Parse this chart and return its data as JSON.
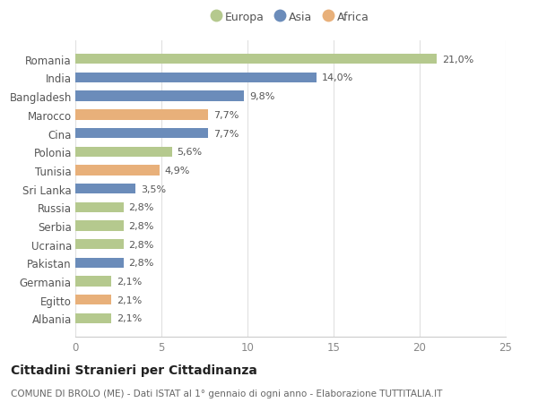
{
  "categories": [
    "Romania",
    "India",
    "Bangladesh",
    "Marocco",
    "Cina",
    "Polonia",
    "Tunisia",
    "Sri Lanka",
    "Russia",
    "Serbia",
    "Ucraina",
    "Pakistan",
    "Germania",
    "Egitto",
    "Albania"
  ],
  "values": [
    21.0,
    14.0,
    9.8,
    7.7,
    7.7,
    5.6,
    4.9,
    3.5,
    2.8,
    2.8,
    2.8,
    2.8,
    2.1,
    2.1,
    2.1
  ],
  "labels": [
    "21,0%",
    "14,0%",
    "9,8%",
    "7,7%",
    "7,7%",
    "5,6%",
    "4,9%",
    "3,5%",
    "2,8%",
    "2,8%",
    "2,8%",
    "2,8%",
    "2,1%",
    "2,1%",
    "2,1%"
  ],
  "continents": [
    "Europa",
    "Asia",
    "Asia",
    "Africa",
    "Asia",
    "Europa",
    "Africa",
    "Asia",
    "Europa",
    "Europa",
    "Europa",
    "Asia",
    "Europa",
    "Africa",
    "Europa"
  ],
  "colors": {
    "Europa": "#b5c98e",
    "Asia": "#6b8cba",
    "Africa": "#e8b07a"
  },
  "xlim": [
    0,
    25
  ],
  "xticks": [
    0,
    5,
    10,
    15,
    20,
    25
  ],
  "background_color": "#ffffff",
  "grid_color": "#e0e0e0",
  "title": "Cittadini Stranieri per Cittadinanza",
  "subtitle": "COMUNE DI BROLO (ME) - Dati ISTAT al 1° gennaio di ogni anno - Elaborazione TUTTITALIA.IT",
  "title_fontsize": 10,
  "subtitle_fontsize": 7.5,
  "bar_height": 0.55,
  "label_fontsize": 8,
  "ytick_fontsize": 8.5
}
